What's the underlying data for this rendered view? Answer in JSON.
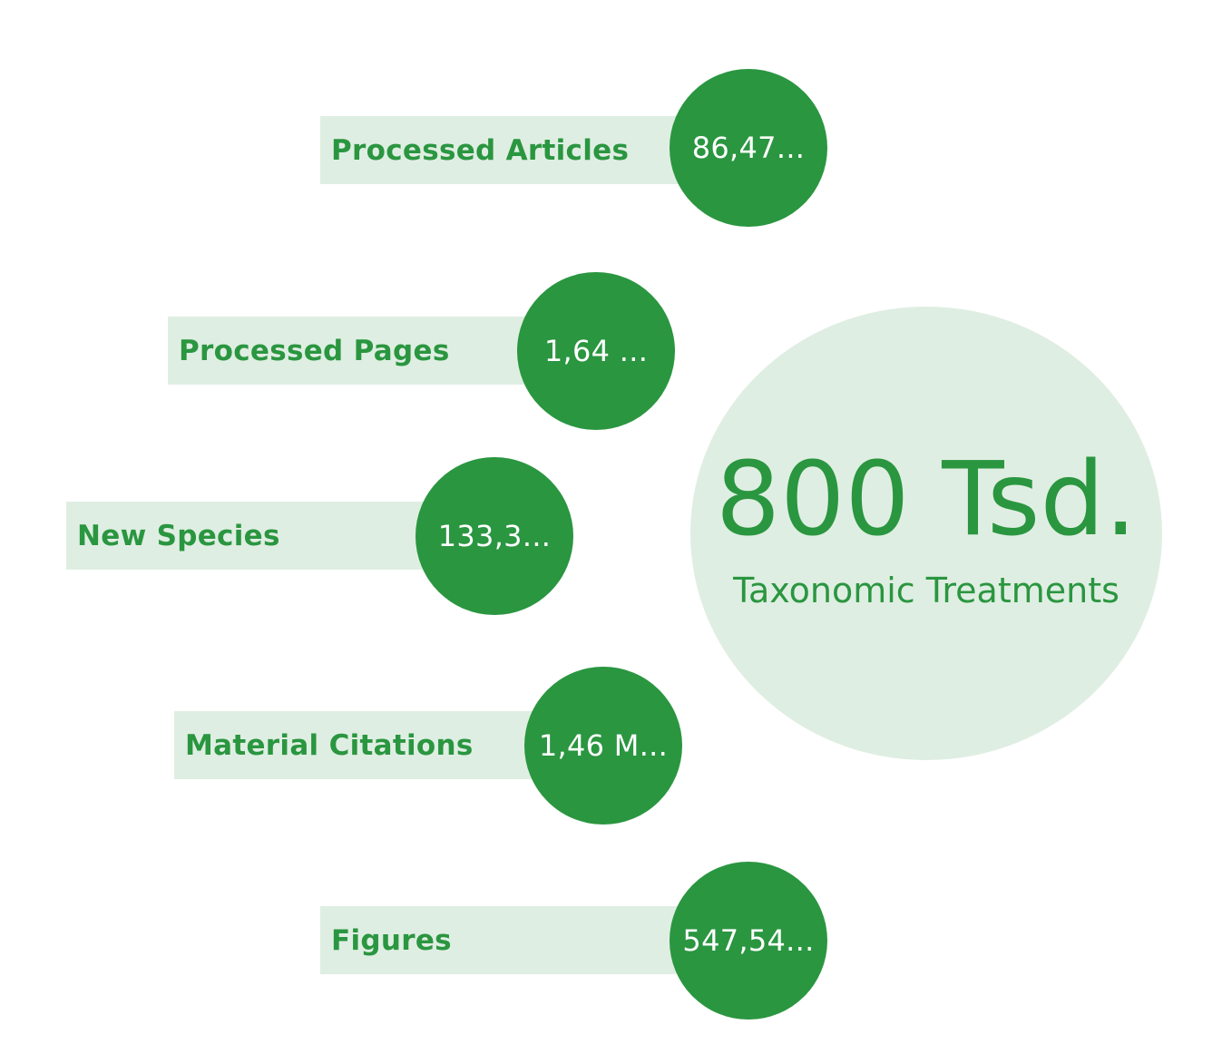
{
  "stats": [
    {
      "label": "Processed Articles",
      "value": "86,47..."
    },
    {
      "label": "Processed Pages",
      "value": "1,64 ..."
    },
    {
      "label": "New Species",
      "value": "133,3..."
    },
    {
      "label": "Material Citations",
      "value": "1,46 M..."
    },
    {
      "label": "Figures",
      "value": "547,54..."
    }
  ],
  "highlight": {
    "value": "800 Tsd.",
    "caption": "Taxonomic Treatments"
  },
  "colors": {
    "accent": "#2a9640",
    "accent_light": "#dfeee2"
  }
}
